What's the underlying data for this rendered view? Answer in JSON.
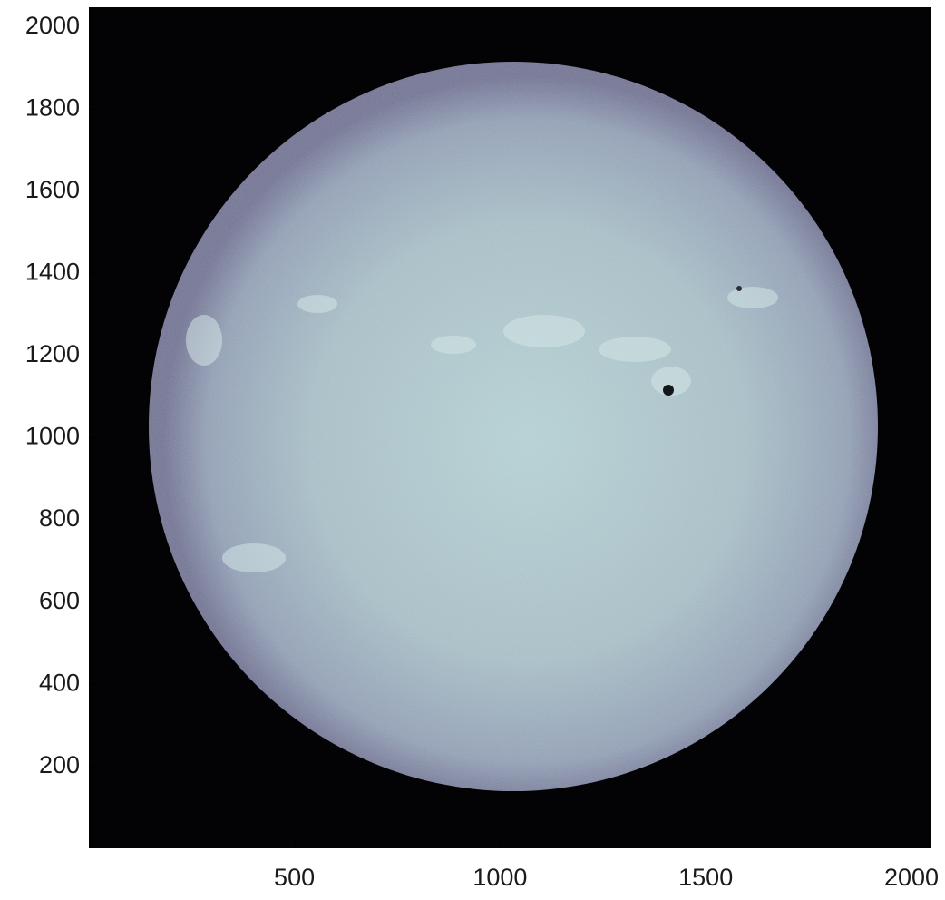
{
  "chart_data": {
    "type": "image",
    "xlim": [
      0.5,
      2048.5
    ],
    "ylim": [
      0.5,
      2048.5
    ],
    "xticks": [
      500,
      1000,
      1500,
      2000
    ],
    "yticks": [
      200,
      400,
      600,
      800,
      1000,
      1200,
      1400,
      1600,
      1800,
      2000
    ]
  }
}
